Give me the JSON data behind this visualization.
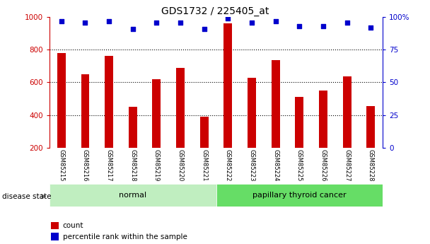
{
  "title": "GDS1732 / 225405_at",
  "samples": [
    "GSM85215",
    "GSM85216",
    "GSM85217",
    "GSM85218",
    "GSM85219",
    "GSM85220",
    "GSM85221",
    "GSM85222",
    "GSM85223",
    "GSM85224",
    "GSM85225",
    "GSM85226",
    "GSM85227",
    "GSM85228"
  ],
  "counts": [
    780,
    648,
    762,
    452,
    618,
    690,
    388,
    960,
    628,
    735,
    512,
    550,
    638,
    455
  ],
  "percentiles": [
    97,
    96,
    97,
    91,
    96,
    96,
    91,
    99,
    96,
    97,
    93,
    93,
    96,
    92
  ],
  "groups": [
    {
      "label": "normal",
      "start": 0,
      "end": 7,
      "color": "#c0eec0"
    },
    {
      "label": "papillary thyroid cancer",
      "start": 7,
      "end": 14,
      "color": "#66dd66"
    }
  ],
  "bar_color": "#cc0000",
  "dot_color": "#0000cc",
  "left_axis_color": "#cc0000",
  "right_axis_color": "#0000cc",
  "ylim_left": [
    200,
    1000
  ],
  "ylim_right": [
    0,
    100
  ],
  "left_ticks": [
    200,
    400,
    600,
    800,
    1000
  ],
  "left_tick_labels": [
    "200",
    "400",
    "600",
    "800",
    "1000"
  ],
  "right_ticks": [
    0,
    25,
    50,
    75,
    100
  ],
  "right_tick_labels": [
    "0",
    "25",
    "50",
    "75",
    "100%"
  ],
  "grid_values": [
    400,
    600,
    800
  ],
  "disease_state_label": "disease state",
  "legend_count_label": "count",
  "legend_percentile_label": "percentile rank within the sample",
  "bg_color": "#ffffff",
  "tick_area_color": "#cccccc",
  "bar_width": 0.35
}
